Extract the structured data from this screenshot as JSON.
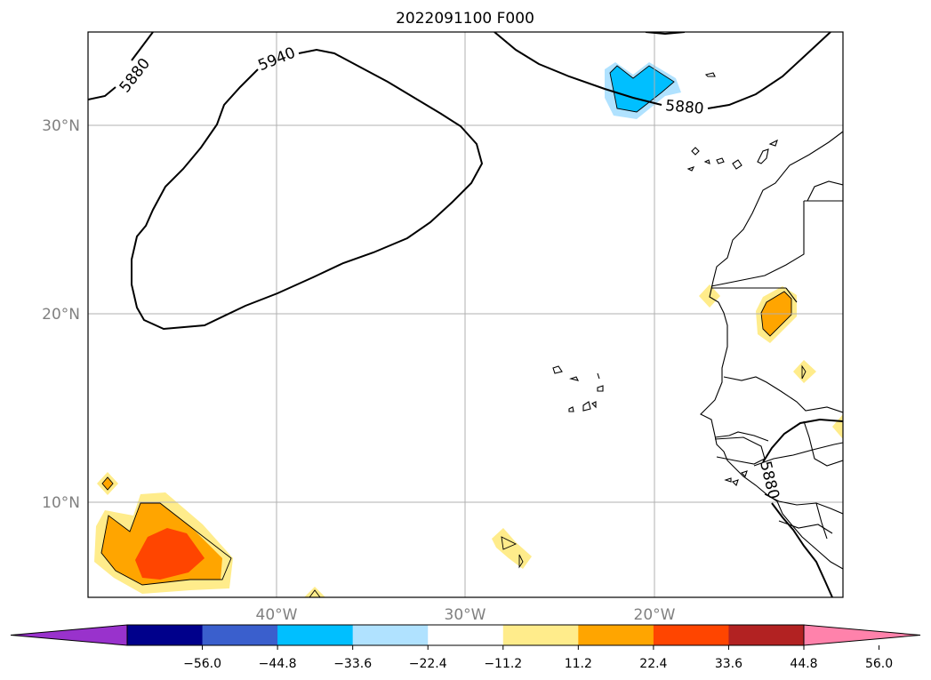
{
  "title": "2022091100 F000",
  "lat_labels": [
    "30°N",
    "20°N",
    "10°N"
  ],
  "lon_labels": [
    "40°W",
    "30°W",
    "20°W"
  ],
  "contour_labels": [
    "5880",
    "5940",
    "5880",
    "5880"
  ],
  "colorbar": {
    "ticks": [
      "−56.0",
      "−44.8",
      "−33.6",
      "−22.4",
      "−11.2",
      "11.2",
      "22.4",
      "33.6",
      "44.8",
      "56.0"
    ],
    "colors": [
      "#9932cc",
      "#00008b",
      "#3a5fcd",
      "#00bfff",
      "#b0e2ff",
      "#ffffff",
      "#ffec8b",
      "#ffa500",
      "#ff4500",
      "#b22222",
      "#ff82ab"
    ]
  },
  "colors": {
    "land": "#000000",
    "contour": "#000000",
    "grid": "#b0b0b0"
  }
}
